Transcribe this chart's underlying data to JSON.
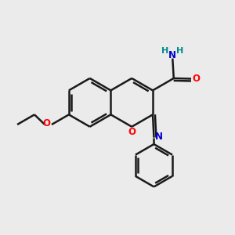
{
  "background_color": "#ebebeb",
  "atom_colors": {
    "O": "#ff0000",
    "N": "#0000cd",
    "H": "#008b8b"
  },
  "bond_color": "#1a1a1a",
  "bond_width": 1.8,
  "figsize": [
    3.0,
    3.0
  ],
  "dpi": 100,
  "xlim": [
    0,
    10
  ],
  "ylim": [
    0,
    10
  ]
}
